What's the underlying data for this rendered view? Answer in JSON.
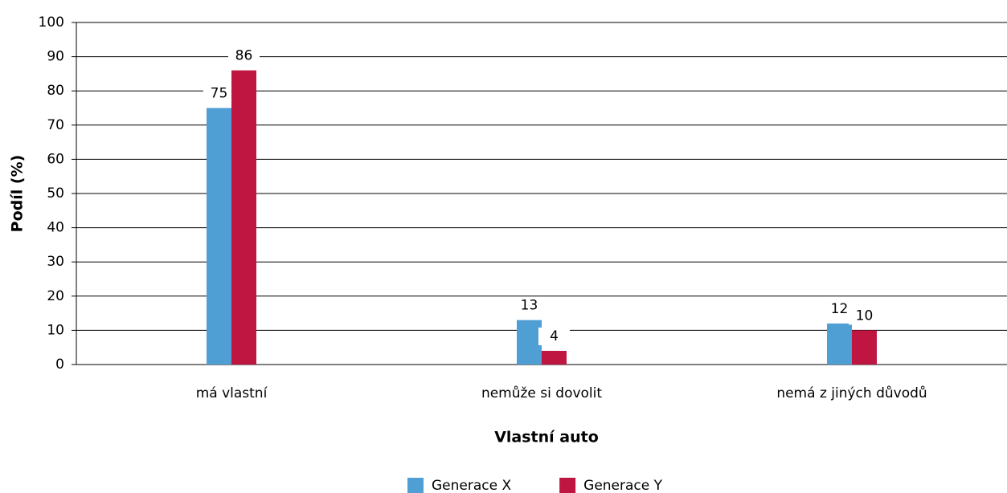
{
  "chart_data": {
    "type": "bar",
    "x_label": "Vlastní auto",
    "y_label": "Podíl (%)",
    "categories": [
      "má vlastní",
      "nemůže si dovolit",
      "nemá z jiných důvodů"
    ],
    "series": [
      {
        "name": "Generace X",
        "color": "#4f9ed4",
        "values": [
          75,
          13,
          12
        ]
      },
      {
        "name": "Generace Y",
        "color": "#be1641",
        "values": [
          86,
          4,
          10
        ]
      }
    ],
    "ylim": [
      0,
      100
    ],
    "yticks": [
      0,
      10,
      20,
      30,
      40,
      50,
      60,
      70,
      80,
      90,
      100
    ],
    "grid": true,
    "legend": "bottom"
  }
}
